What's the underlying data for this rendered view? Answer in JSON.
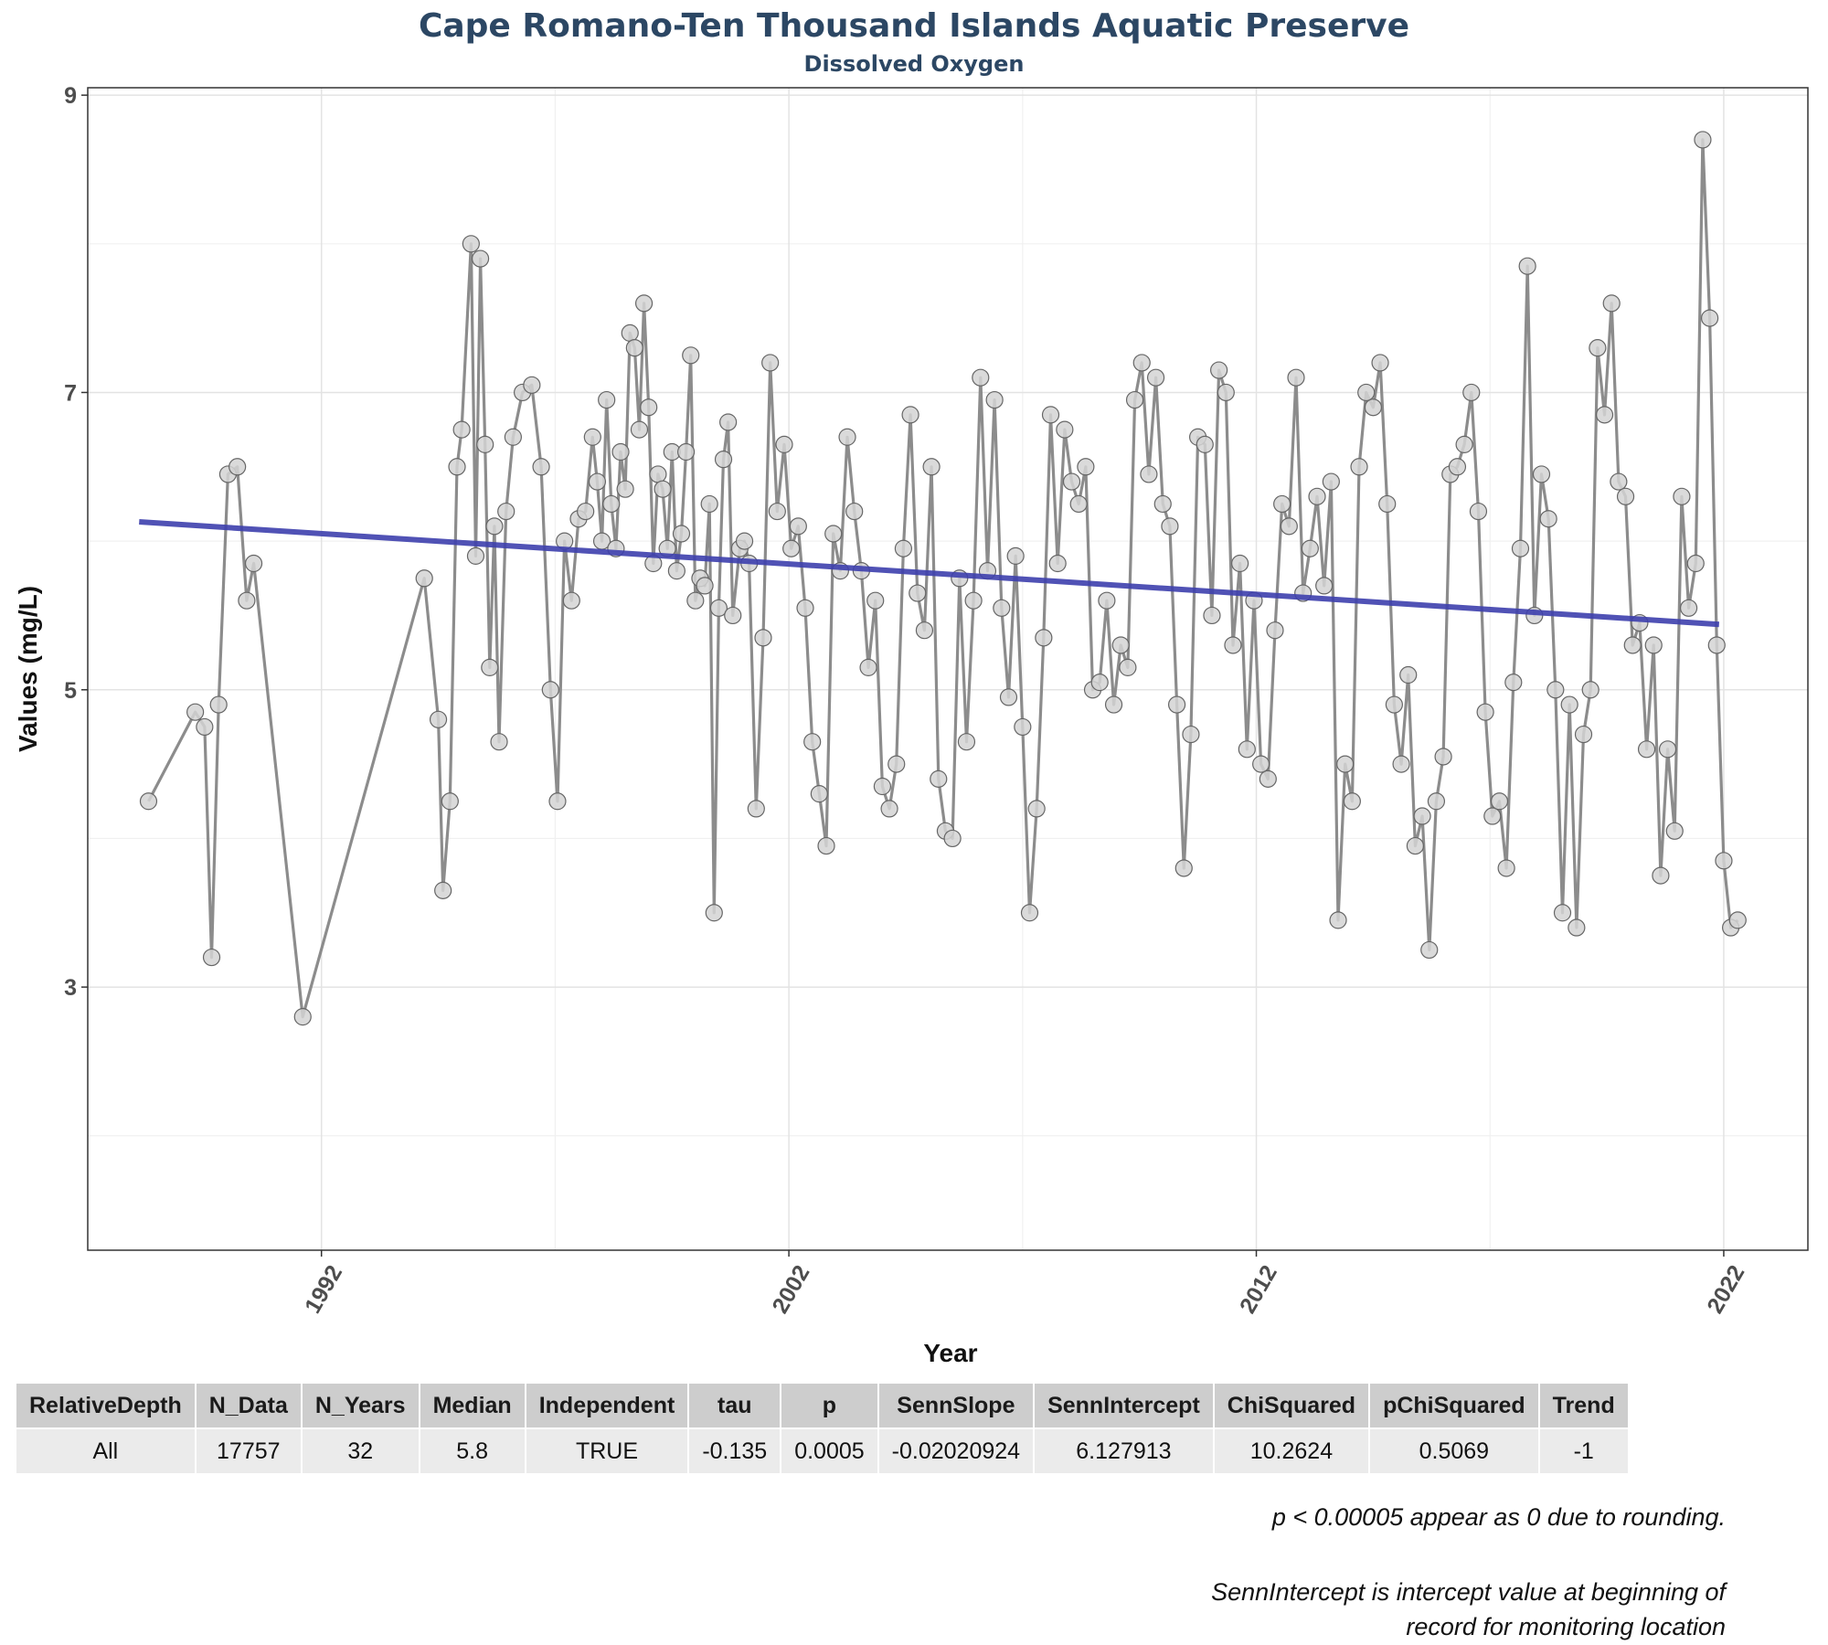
{
  "title": "Cape Romano-Ten Thousand Islands Aquatic Preserve",
  "subtitle": "Dissolved Oxygen",
  "chart_data": {
    "type": "line",
    "title": "Cape Romano-Ten Thousand Islands Aquatic Preserve",
    "subtitle": "Dissolved Oxygen",
    "xlabel": "Year",
    "ylabel": "Values (mg/L)",
    "xlim": [
      1987.0,
      2023.8
    ],
    "ylim": [
      1.23,
      9.05
    ],
    "x_ticks": [
      1992,
      2002,
      2012,
      2022
    ],
    "y_ticks": [
      3,
      5,
      7,
      9
    ],
    "grid": true,
    "colors": {
      "line": "#8c8c8c",
      "point_fill": "#d3d3d3",
      "point_stroke": "#666666",
      "trend": "#3d3fad"
    },
    "trend": {
      "name": "",
      "x": [
        1988.1,
        2021.9
      ],
      "y": [
        6.13,
        5.44
      ]
    },
    "series": [
      {
        "x": [
          1988.3,
          1989.3,
          1989.5,
          1989.65,
          1989.8,
          1990.0,
          1990.2,
          1990.4,
          1990.55,
          1991.6,
          1994.2,
          1994.5,
          1994.6,
          1994.75,
          1994.9,
          1995.0,
          1995.2,
          1995.3,
          1995.4,
          1995.5,
          1995.6,
          1995.7,
          1995.8,
          1995.95,
          1996.1,
          1996.3,
          1996.5,
          1996.7,
          1996.9,
          1997.05,
          1997.2,
          1997.35,
          1997.5,
          1997.65,
          1997.8,
          1997.9,
          1998.0,
          1998.1,
          1998.2,
          1998.3,
          1998.4,
          1998.5,
          1998.6,
          1998.7,
          1998.8,
          1998.9,
          1999.0,
          1999.1,
          1999.2,
          1999.3,
          1999.4,
          1999.5,
          1999.6,
          1999.7,
          1999.8,
          1999.9,
          2000.0,
          2000.1,
          2000.2,
          2000.3,
          2000.4,
          2000.5,
          2000.6,
          2000.7,
          2000.8,
          2000.95,
          2001.05,
          2001.15,
          2001.3,
          2001.45,
          2001.6,
          2001.75,
          2001.9,
          2002.05,
          2002.2,
          2002.35,
          2002.5,
          2002.65,
          2002.8,
          2002.95,
          2003.1,
          2003.25,
          2003.4,
          2003.55,
          2003.7,
          2003.85,
          2004.0,
          2004.15,
          2004.3,
          2004.45,
          2004.6,
          2004.75,
          2004.9,
          2005.05,
          2005.2,
          2005.35,
          2005.5,
          2005.65,
          2005.8,
          2005.95,
          2006.1,
          2006.25,
          2006.4,
          2006.55,
          2006.7,
          2006.85,
          2007.0,
          2007.15,
          2007.3,
          2007.45,
          2007.6,
          2007.75,
          2007.9,
          2008.05,
          2008.2,
          2008.35,
          2008.5,
          2008.65,
          2008.8,
          2008.95,
          2009.1,
          2009.25,
          2009.4,
          2009.55,
          2009.7,
          2009.85,
          2010.0,
          2010.15,
          2010.3,
          2010.45,
          2010.6,
          2010.75,
          2010.9,
          2011.05,
          2011.2,
          2011.35,
          2011.5,
          2011.65,
          2011.8,
          2011.95,
          2012.1,
          2012.25,
          2012.4,
          2012.55,
          2012.7,
          2012.85,
          2013.0,
          2013.15,
          2013.3,
          2013.45,
          2013.6,
          2013.75,
          2013.9,
          2014.05,
          2014.2,
          2014.35,
          2014.5,
          2014.65,
          2014.8,
          2014.95,
          2015.1,
          2015.25,
          2015.4,
          2015.55,
          2015.7,
          2015.85,
          2016.0,
          2016.15,
          2016.3,
          2016.45,
          2016.6,
          2016.75,
          2016.9,
          2017.05,
          2017.2,
          2017.35,
          2017.5,
          2017.65,
          2017.8,
          2017.95,
          2018.1,
          2018.25,
          2018.4,
          2018.55,
          2018.7,
          2018.85,
          2019.0,
          2019.15,
          2019.3,
          2019.45,
          2019.6,
          2019.75,
          2019.9,
          2020.05,
          2020.2,
          2020.35,
          2020.5,
          2020.65,
          2020.8,
          2020.95,
          2021.1,
          2021.25,
          2021.4,
          2021.55,
          2021.7,
          2021.85,
          2022.0,
          2022.15,
          2022.3
        ],
        "values": [
          4.25,
          4.85,
          4.75,
          3.2,
          4.9,
          6.45,
          6.5,
          5.6,
          5.85,
          2.8,
          5.75,
          4.8,
          3.65,
          4.25,
          6.5,
          6.75,
          8.0,
          5.9,
          7.9,
          6.65,
          5.15,
          6.1,
          4.65,
          6.2,
          6.7,
          7.0,
          7.05,
          6.5,
          5.0,
          4.25,
          6.0,
          5.6,
          6.15,
          6.2,
          6.7,
          6.4,
          6.0,
          6.95,
          6.25,
          5.95,
          6.6,
          6.35,
          7.4,
          7.3,
          6.75,
          7.6,
          6.9,
          5.85,
          6.45,
          6.35,
          5.95,
          6.6,
          5.8,
          6.05,
          6.6,
          7.25,
          5.6,
          5.75,
          5.7,
          6.25,
          3.5,
          5.55,
          6.55,
          6.8,
          5.5,
          5.95,
          6.0,
          5.85,
          4.2,
          5.35,
          7.2,
          6.2,
          6.65,
          5.95,
          6.1,
          5.55,
          4.65,
          4.3,
          3.95,
          6.05,
          5.8,
          6.7,
          6.2,
          5.8,
          5.15,
          5.6,
          4.35,
          4.2,
          4.5,
          5.95,
          6.85,
          5.65,
          5.4,
          6.5,
          4.4,
          4.05,
          4.0,
          5.75,
          4.65,
          5.6,
          7.1,
          5.8,
          6.95,
          5.55,
          4.95,
          5.9,
          4.75,
          3.5,
          4.2,
          5.35,
          6.85,
          5.85,
          6.75,
          6.4,
          6.25,
          6.5,
          5.0,
          5.05,
          5.6,
          4.9,
          5.3,
          5.15,
          6.95,
          7.2,
          6.45,
          7.1,
          6.25,
          6.1,
          4.9,
          3.8,
          4.7,
          6.7,
          6.65,
          5.5,
          7.15,
          7.0,
          5.3,
          5.85,
          4.6,
          5.6,
          4.5,
          4.4,
          5.4,
          6.25,
          6.1,
          7.1,
          5.65,
          5.95,
          6.3,
          5.7,
          6.4,
          3.45,
          4.5,
          4.25,
          6.5,
          7.0,
          6.9,
          7.2,
          6.25,
          4.9,
          4.5,
          5.1,
          3.95,
          4.15,
          3.25,
          4.25,
          4.55,
          6.45,
          6.5,
          6.65,
          7.0,
          6.2,
          4.85,
          4.15,
          4.25,
          3.8,
          5.05,
          5.95,
          7.85,
          5.5,
          6.45,
          6.15,
          5.0,
          3.5,
          4.9,
          3.4,
          4.7,
          5.0,
          7.3,
          6.85,
          7.6,
          6.4,
          6.3,
          5.3,
          5.45,
          4.6,
          5.3,
          3.75,
          4.6,
          4.05,
          6.3,
          5.55,
          5.85,
          8.7,
          7.5,
          5.3,
          3.85,
          3.4,
          3.45
        ],
        "note": "values approximate, read from gridlines"
      }
    ]
  },
  "table": {
    "headers": [
      "RelativeDepth",
      "N_Data",
      "N_Years",
      "Median",
      "Independent",
      "tau",
      "p",
      "SennSlope",
      "SennIntercept",
      "ChiSquared",
      "pChiSquared",
      "Trend"
    ],
    "rows": [
      [
        "All",
        "17757",
        "32",
        "5.8",
        "TRUE",
        "-0.135",
        "0.0005",
        "-0.02020924",
        "6.127913",
        "10.2624",
        "0.5069",
        "-1"
      ]
    ]
  },
  "notes": {
    "rounding": "p < 0.00005 appear as 0 due to rounding.",
    "intercept_line1": "SennIntercept is intercept value at beginning of",
    "intercept_line2": "record for monitoring location"
  }
}
